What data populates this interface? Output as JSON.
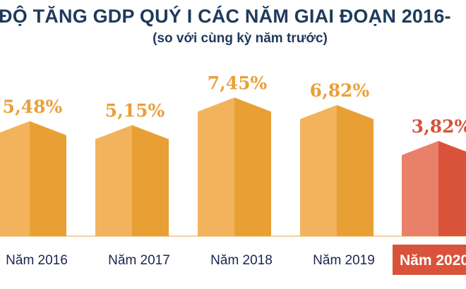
{
  "chart_data": {
    "type": "bar",
    "title": "ĐỘ TĂNG GDP QUÝ I CÁC NĂM GIAI ĐOẠN 2016-",
    "subtitle": "(so với cùng kỳ năm trước)",
    "categories": [
      "Năm 2016",
      "Năm 2017",
      "Năm 2018",
      "Năm 2019",
      "Năm 2020"
    ],
    "values": [
      5.48,
      5.15,
      7.45,
      6.82,
      3.82
    ],
    "data_labels": [
      "5,48%",
      "5,15%",
      "7,45%",
      "6,82%",
      "3,82%"
    ],
    "highlighted_category": "Năm 2020",
    "grid": false,
    "colors": {
      "bar_light": "#f2b35c",
      "bar_dark": "#e8a035",
      "label": "#e8a03a",
      "highlight_light": "#e8806a",
      "highlight_dark": "#d9533a",
      "highlight_label": "#d9503a",
      "category_text": "#1d2450",
      "title": "#1e3a5c"
    }
  }
}
